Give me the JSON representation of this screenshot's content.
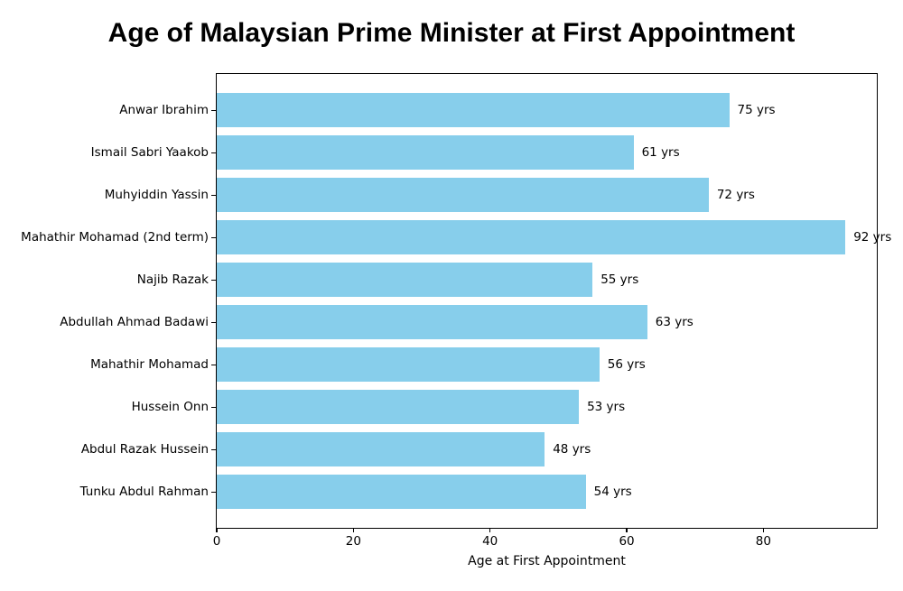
{
  "title": "Age of Malaysian Prime Minister at First Appointment",
  "chart_data": {
    "type": "bar",
    "orientation": "horizontal",
    "title": "Age of Malaysian Prime Minister at First Appointment",
    "categories": [
      "Anwar Ibrahim",
      "Ismail Sabri Yaakob",
      "Muhyiddin Yassin",
      "Mahathir Mohamad (2nd term)",
      "Najib Razak",
      "Abdullah Ahmad Badawi",
      "Mahathir Mohamad",
      "Hussein Onn",
      "Abdul Razak Hussein",
      "Tunku Abdul Rahman"
    ],
    "values": [
      75,
      61,
      72,
      92,
      55,
      63,
      56,
      53,
      48,
      54
    ],
    "value_labels": [
      "75 yrs",
      "61 yrs",
      "72 yrs",
      "92 yrs",
      "55 yrs",
      "63 yrs",
      "56 yrs",
      "53 yrs",
      "48 yrs",
      "54 yrs"
    ],
    "xlabel": "Age at First Appointment",
    "ylabel": "",
    "xticks": [
      0,
      20,
      40,
      60,
      80
    ],
    "xtick_labels": [
      "0",
      "20",
      "40",
      "60",
      "80"
    ],
    "xlim": [
      0,
      96.6
    ],
    "bar_color": "#87CEEB",
    "text_color": "#000000",
    "background_color": "#ffffff",
    "grid": false,
    "legend": false
  }
}
